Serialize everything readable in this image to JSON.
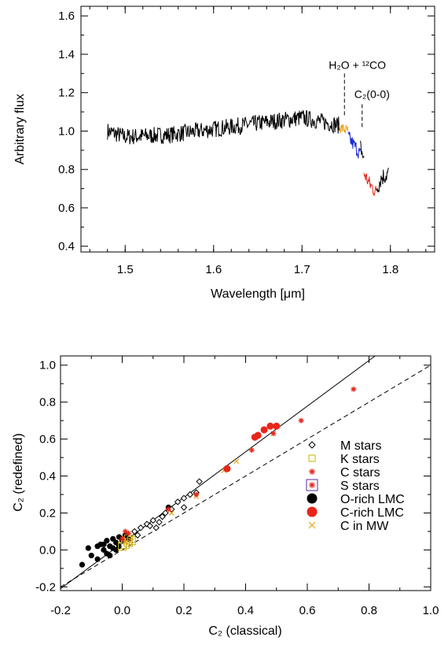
{
  "chart_data": [
    {
      "type": "line",
      "xlabel": "Wavelength [μm]",
      "ylabel": "Arbitrary flux",
      "xlim": [
        1.45,
        1.85
      ],
      "ylim": [
        0.37,
        1.65
      ],
      "x_ticks": [
        "1.5",
        "1.6",
        "1.7",
        "1.8"
      ],
      "y_ticks": [
        "0.4",
        "0.6",
        "0.8",
        "1.0",
        "1.2",
        "1.4",
        "1.6"
      ],
      "annotations": [
        {
          "label": "H₂O + ¹²CO",
          "x": 1.748,
          "y_top": 1.3,
          "y_bottom": 1.07
        },
        {
          "label": "C₂(0-0)",
          "x": 1.768,
          "y_top": 1.14,
          "y_bottom": 1.01
        }
      ],
      "series": [
        {
          "color": "#000000",
          "x_start": 1.48,
          "x_end": 1.742,
          "noise": 0.045,
          "level": [
            [
              1.48,
              1.0
            ],
            [
              1.5,
              0.97
            ],
            [
              1.55,
              0.98
            ],
            [
              1.6,
              1.01
            ],
            [
              1.65,
              1.04
            ],
            [
              1.7,
              1.07
            ],
            [
              1.742,
              1.03
            ]
          ]
        },
        {
          "color": "#e8a317",
          "x_start": 1.742,
          "x_end": 1.752,
          "noise": 0.03,
          "level": [
            [
              1.742,
              1.02
            ],
            [
              1.752,
              1.0
            ]
          ]
        },
        {
          "color": "#1a2ad6",
          "x_start": 1.752,
          "x_end": 1.766,
          "noise": 0.04,
          "level": [
            [
              1.752,
              0.97
            ],
            [
              1.766,
              0.88
            ]
          ]
        },
        {
          "color": "#000000",
          "x_start": 1.766,
          "x_end": 1.77,
          "noise": 0.04,
          "level": [
            [
              1.766,
              0.92
            ],
            [
              1.77,
              0.85
            ]
          ]
        },
        {
          "color": "#e8251a",
          "x_start": 1.77,
          "x_end": 1.784,
          "noise": 0.04,
          "level": [
            [
              1.77,
              0.78
            ],
            [
              1.777,
              0.72
            ],
            [
              1.784,
              0.68
            ]
          ]
        },
        {
          "color": "#000000",
          "x_start": 1.784,
          "x_end": 1.798,
          "noise": 0.05,
          "level": [
            [
              1.784,
              0.7
            ],
            [
              1.79,
              0.76
            ],
            [
              1.798,
              0.78
            ]
          ]
        }
      ]
    },
    {
      "type": "scatter",
      "xlabel": "C₂ (classical)",
      "ylabel": "C₂ (redefined)",
      "xlim": [
        -0.2,
        1.0
      ],
      "ylim": [
        -0.22,
        1.05
      ],
      "x_ticks": [
        "-0.2",
        "0.0",
        "0.2",
        "0.4",
        "0.6",
        "0.8",
        "1.0"
      ],
      "y_ticks": [
        "-0.2",
        "0.0",
        "0.2",
        "0.4",
        "0.6",
        "0.8",
        "1.0"
      ],
      "lines": [
        {
          "style": "solid",
          "x": [
            -0.2,
            0.82
          ],
          "y": [
            -0.21,
            1.05
          ]
        },
        {
          "style": "dashed",
          "x": [
            -0.2,
            1.0
          ],
          "y": [
            -0.2,
            1.0
          ]
        }
      ],
      "legend_position": "right",
      "series": [
        {
          "name": "M stars",
          "marker": "diamond",
          "color": "#000000",
          "points": [
            [
              0.04,
              0.1
            ],
            [
              0.06,
              0.12
            ],
            [
              0.08,
              0.14
            ],
            [
              0.1,
              0.16
            ],
            [
              0.12,
              0.15
            ],
            [
              0.09,
              0.13
            ],
            [
              0.14,
              0.2
            ],
            [
              0.16,
              0.22
            ],
            [
              0.18,
              0.26
            ],
            [
              0.2,
              0.28
            ],
            [
              0.22,
              0.3
            ],
            [
              0.24,
              0.31
            ],
            [
              0.2,
              0.23
            ],
            [
              0.25,
              0.37
            ],
            [
              0.13,
              0.18
            ],
            [
              0.11,
              0.12
            ],
            [
              0.05,
              0.08
            ]
          ]
        },
        {
          "name": "K stars",
          "marker": "square",
          "color": "#c9b000",
          "points": [
            [
              0.02,
              0.04
            ],
            [
              0.01,
              0.03
            ],
            [
              0.03,
              0.05
            ],
            [
              0.0,
              0.02
            ],
            [
              0.02,
              0.06
            ]
          ]
        },
        {
          "name": "C stars",
          "marker": "asterisk",
          "color": "#e8251a",
          "points": [
            [
              0.0,
              0.06
            ],
            [
              0.01,
              0.1
            ],
            [
              0.15,
              0.22
            ],
            [
              0.24,
              0.3
            ],
            [
              0.34,
              0.44
            ],
            [
              0.42,
              0.54
            ],
            [
              0.49,
              0.63
            ],
            [
              0.58,
              0.7
            ],
            [
              0.75,
              0.87
            ],
            [
              0.02,
              0.09
            ]
          ]
        },
        {
          "name": "S stars",
          "marker": "boxed-asterisk",
          "color": "#5a2aa0",
          "points": []
        },
        {
          "name": "O-rich LMC",
          "marker": "filled-circle",
          "color": "#000000",
          "points": [
            [
              -0.13,
              -0.08
            ],
            [
              -0.11,
              0.01
            ],
            [
              -0.1,
              -0.03
            ],
            [
              -0.08,
              0.02
            ],
            [
              -0.08,
              -0.05
            ],
            [
              -0.07,
              0.03
            ],
            [
              -0.06,
              0.0
            ],
            [
              -0.05,
              0.05
            ],
            [
              -0.05,
              -0.02
            ],
            [
              -0.04,
              0.02
            ],
            [
              -0.03,
              0.06
            ],
            [
              -0.02,
              0.04
            ],
            [
              -0.02,
              0.0
            ],
            [
              -0.01,
              0.07
            ],
            [
              0.0,
              0.05
            ],
            [
              0.01,
              0.08
            ],
            [
              -0.03,
              0.01
            ],
            [
              -0.06,
              0.03
            ],
            [
              0.15,
              0.23
            ],
            [
              -0.04,
              -0.03
            ],
            [
              -0.01,
              0.02
            ],
            [
              0.02,
              0.06
            ]
          ]
        },
        {
          "name": "C-rich LMC",
          "marker": "filled-circle",
          "color": "#e8251a",
          "points": [
            [
              0.34,
              0.44
            ],
            [
              0.43,
              0.61
            ],
            [
              0.46,
              0.65
            ],
            [
              0.48,
              0.67
            ],
            [
              0.5,
              0.67
            ],
            [
              0.44,
              0.62
            ]
          ]
        },
        {
          "name": "C in MW",
          "marker": "x",
          "color": "#e8a317",
          "points": [
            [
              0.16,
              0.2
            ],
            [
              0.24,
              0.29
            ],
            [
              0.37,
              0.48
            ],
            [
              0.49,
              0.63
            ],
            [
              0.33,
              0.43
            ],
            [
              0.01,
              0.04
            ],
            [
              0.03,
              0.05
            ]
          ]
        }
      ]
    }
  ]
}
